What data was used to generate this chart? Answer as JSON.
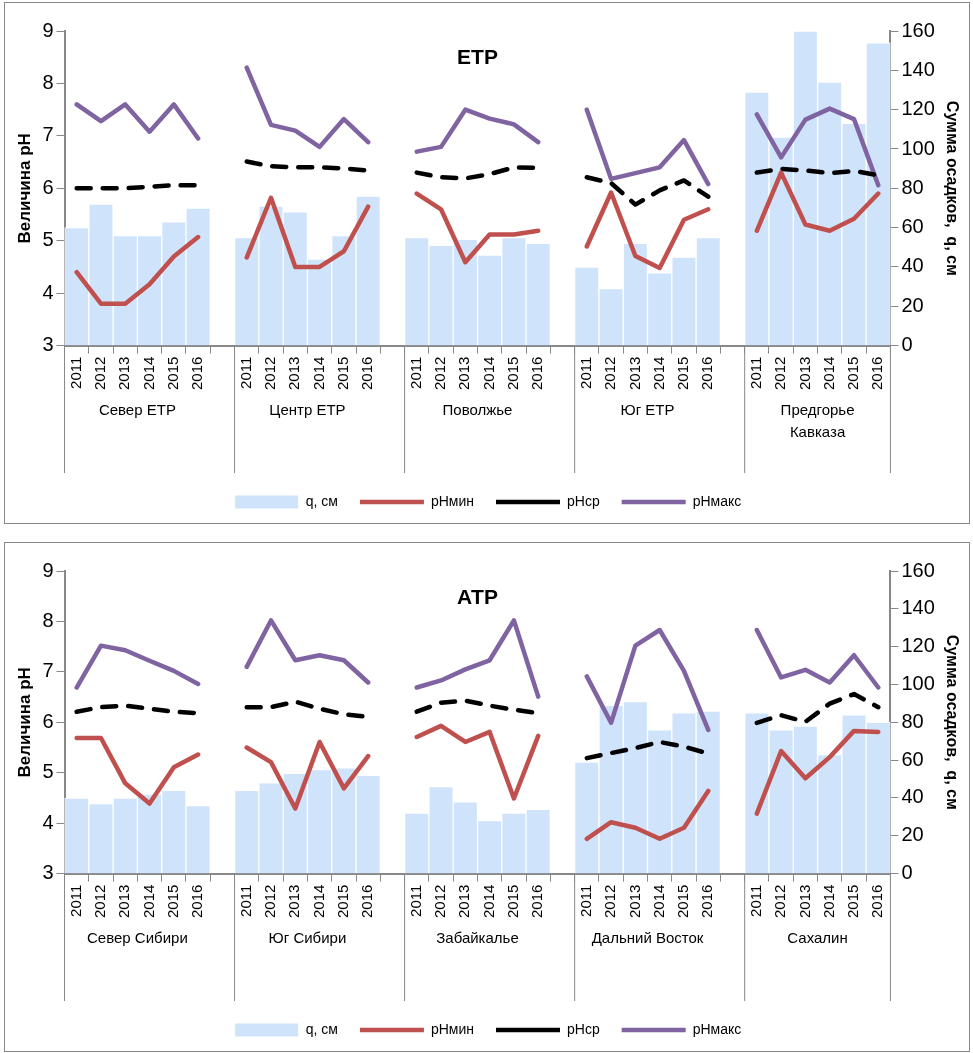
{
  "chart_data": [
    {
      "type": "bar",
      "title": "ЕТР",
      "ylabel": "Величина pH",
      "y2label": "Сумма осадков,  q, см",
      "legend": "bottom",
      "categories": [
        "2011",
        "2012",
        "2013",
        "2014",
        "2015",
        "2016",
        null,
        "2011",
        "2012",
        "2013",
        "2014",
        "2015",
        "2016",
        null,
        "2011",
        "2012",
        "2013",
        "2014",
        "2015",
        "2016",
        null,
        "2011",
        "2012",
        "2013",
        "2014",
        "2015",
        "2016",
        null,
        "2011",
        "2012",
        "2013",
        "2014",
        "2015",
        "2016"
      ],
      "annotations": [
        "Север ЕТР",
        "Центр ЕТР",
        "Поволжье",
        "Юг ЕТР",
        "Предгорье Кавказа"
      ],
      "ylim": [
        3,
        9
      ],
      "yticks": [
        3,
        4,
        5,
        6,
        7,
        8,
        9
      ],
      "y2lim": [
        0,
        160
      ],
      "y2ticks": [
        0,
        20,
        40,
        60,
        80,
        100,
        120,
        140,
        160
      ],
      "series": [
        {
          "name": "q, см",
          "axis": "y2",
          "color": "#cfe3fb",
          "values": [
            60,
            72,
            56,
            56,
            63,
            70,
            null,
            55,
            71,
            68,
            44,
            56,
            76,
            null,
            55,
            51,
            54,
            46,
            55,
            52,
            null,
            40,
            29,
            52,
            37,
            45,
            55,
            null,
            129,
            106,
            160,
            134,
            113,
            154
          ]
        },
        {
          "name": "pHмин",
          "type": "line",
          "line_style": "solid",
          "color": "#c0504d",
          "values": [
            4.4,
            3.8,
            3.8,
            4.17,
            4.7,
            5.07,
            null,
            4.68,
            5.82,
            4.5,
            4.5,
            4.8,
            5.65,
            null,
            5.9,
            5.6,
            4.59,
            5.12,
            5.12,
            5.19,
            null,
            4.89,
            5.92,
            4.71,
            4.48,
            5.4,
            5.6,
            null,
            5.19,
            6.3,
            5.31,
            5.19,
            5.42,
            5.9
          ]
        },
        {
          "name": "pHср",
          "type": "line",
          "line_style": "dashed",
          "color": "#000000",
          "values": [
            6.0,
            6.0,
            6.0,
            6.03,
            6.06,
            6.06,
            null,
            6.51,
            6.42,
            6.4,
            6.4,
            6.38,
            6.34,
            null,
            6.3,
            6.21,
            6.19,
            6.27,
            6.4,
            6.39,
            null,
            6.21,
            6.1,
            5.69,
            5.96,
            6.15,
            5.84,
            null,
            6.3,
            6.37,
            6.34,
            6.29,
            6.33,
            6.25
          ]
        },
        {
          "name": "pHмакс",
          "type": "line",
          "line_style": "solid",
          "color": "#8064a2",
          "values": [
            7.6,
            7.28,
            7.6,
            7.08,
            7.6,
            6.95,
            null,
            8.3,
            7.21,
            7.1,
            6.79,
            7.32,
            6.88,
            null,
            6.7,
            6.79,
            7.5,
            7.33,
            7.22,
            6.88,
            null,
            7.5,
            6.18,
            6.29,
            6.4,
            6.92,
            6.08,
            null,
            7.41,
            6.59,
            7.31,
            7.52,
            7.32,
            6.06
          ]
        }
      ]
    },
    {
      "type": "bar",
      "title": "АТР",
      "ylabel": "Величина pH",
      "y2label": "Сумма осадков,  q, см",
      "legend": "bottom",
      "categories": [
        "2011",
        "2012",
        "2013",
        "2014",
        "2015",
        "2016",
        null,
        "2011",
        "2012",
        "2013",
        "2014",
        "2015",
        "2016",
        null,
        "2011",
        "2012",
        "2013",
        "2014",
        "2015",
        "2016",
        null,
        "2011",
        "2012",
        "2013",
        "2014",
        "2015",
        "2016",
        null,
        "2011",
        "2012",
        "2013",
        "2014",
        "2015",
        "2016"
      ],
      "annotations": [
        "Север Сибири",
        "Юг Сибири",
        "Забайкалье",
        "Дальний Восток",
        "Сахалин"
      ],
      "ylim": [
        3,
        9
      ],
      "yticks": [
        3,
        4,
        5,
        6,
        7,
        8,
        9
      ],
      "y2lim": [
        0,
        160
      ],
      "y2ticks": [
        0,
        20,
        40,
        60,
        80,
        100,
        120,
        140,
        160
      ],
      "series": [
        {
          "name": "q, см",
          "axis": "y2",
          "color": "#cfe3fb",
          "values": [
            40,
            37,
            40,
            42,
            44,
            36,
            null,
            44,
            48,
            53,
            55,
            56,
            52,
            null,
            32,
            46,
            38,
            28,
            32,
            34,
            null,
            59,
            89,
            91,
            76,
            85,
            86,
            null,
            85,
            76,
            78,
            63,
            84,
            80
          ]
        },
        {
          "name": "pHмин",
          "type": "line",
          "line_style": "solid",
          "color": "#c0504d",
          "values": [
            5.69,
            5.69,
            4.79,
            4.39,
            5.11,
            5.36,
            null,
            5.5,
            5.21,
            4.29,
            5.61,
            4.69,
            5.33,
            null,
            5.71,
            5.93,
            5.61,
            5.81,
            4.49,
            5.73,
            null,
            3.69,
            4.02,
            3.91,
            3.69,
            3.91,
            4.64,
            null,
            4.19,
            5.43,
            4.89,
            5.31,
            5.83,
            5.81
          ]
        },
        {
          "name": "pHср",
          "type": "line",
          "line_style": "dashed",
          "color": "#000000",
          "values": [
            6.21,
            6.3,
            6.33,
            6.27,
            6.21,
            6.18,
            null,
            6.3,
            6.3,
            6.41,
            6.27,
            6.16,
            6.11,
            null,
            6.21,
            6.39,
            6.43,
            6.33,
            6.25,
            6.18,
            null,
            5.29,
            5.39,
            5.49,
            5.61,
            5.52,
            5.38,
            null,
            5.99,
            6.14,
            6.01,
            6.37,
            6.56,
            6.3
          ]
        },
        {
          "name": "pHмакс",
          "type": "line",
          "line_style": "solid",
          "color": "#8064a2",
          "values": [
            6.69,
            7.52,
            7.43,
            7.22,
            7.02,
            6.76,
            null,
            7.1,
            8.02,
            7.23,
            7.33,
            7.23,
            6.79,
            null,
            6.69,
            6.83,
            7.05,
            7.23,
            8.02,
            6.51,
            null,
            6.91,
            5.99,
            7.52,
            7.83,
            7.02,
            5.85,
            null,
            7.83,
            6.89,
            7.04,
            6.79,
            7.33,
            6.69
          ]
        }
      ]
    }
  ]
}
